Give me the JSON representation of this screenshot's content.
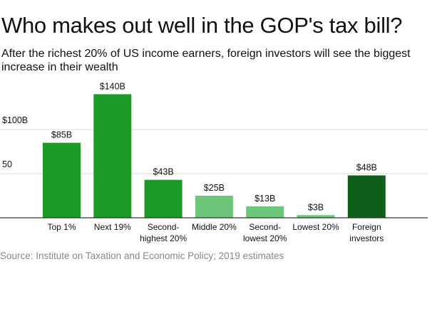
{
  "title": "Who makes out well in the GOP's tax bill?",
  "subtitle": "After the richest 20% of US income earners, foreign investors will see the biggest increase in their wealth",
  "source": "Source: Institute on Taxation and Economic Policy; 2019 estimates",
  "colors": {
    "dark_green": "#1a9a26",
    "light_green": "#6cc77a",
    "darkest_green": "#0f5f1b",
    "grid": "#d8d8d8",
    "baseline": "#333333"
  },
  "chart_data": {
    "type": "bar",
    "title": "Who makes out well in the GOP's tax bill?",
    "xlabel": "",
    "ylabel": "",
    "ylim": [
      0,
      140
    ],
    "yticks": [
      {
        "value": 100,
        "label": "$100B"
      },
      {
        "value": 50,
        "label": "50"
      }
    ],
    "grid": true,
    "categories": [
      [
        "Top 1%"
      ],
      [
        "Next 19%"
      ],
      [
        "Second-",
        "highest 20%"
      ],
      [
        "Middle 20%"
      ],
      [
        "Second-",
        "lowest 20%"
      ],
      [
        "Lowest 20%"
      ],
      [
        "Foreign",
        "investors"
      ]
    ],
    "values": [
      85,
      140,
      43,
      25,
      13,
      3,
      48
    ],
    "value_labels": [
      "$85B",
      "$140B",
      "$43B",
      "$25B",
      "$13B",
      "$3B",
      "$48B"
    ],
    "bar_colors": [
      "#1a9a26",
      "#1a9a26",
      "#1a9a26",
      "#6cc77a",
      "#6cc77a",
      "#6cc77a",
      "#0f5f1b"
    ]
  }
}
